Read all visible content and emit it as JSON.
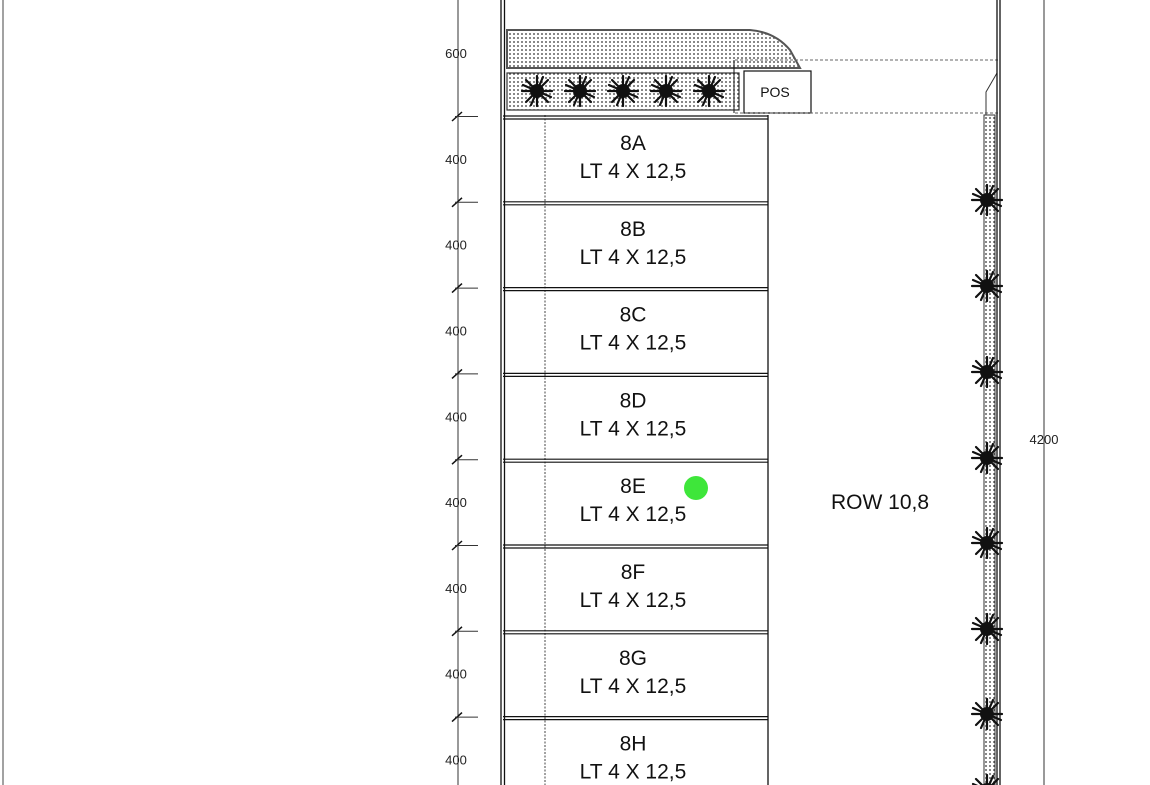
{
  "plan": {
    "top_dimension": "600",
    "lot_dimension": "400",
    "total_dimension": "4200",
    "pos_label": "POS",
    "road_label": "ROW 10,8",
    "lots": [
      {
        "name": "8A",
        "size": "LT 4 X 12,5"
      },
      {
        "name": "8B",
        "size": "LT 4 X 12,5"
      },
      {
        "name": "8C",
        "size": "LT 4 X 12,5"
      },
      {
        "name": "8D",
        "size": "LT 4 X 12,5"
      },
      {
        "name": "8E",
        "size": "LT 4 X 12,5"
      },
      {
        "name": "8F",
        "size": "LT 4 X 12,5"
      },
      {
        "name": "8G",
        "size": "LT 4 X 12,5"
      },
      {
        "name": "8H",
        "size": "LT 4 X 12,5"
      }
    ],
    "marker_color": "#3ee63a",
    "tree_icon": "shrub-icon"
  }
}
